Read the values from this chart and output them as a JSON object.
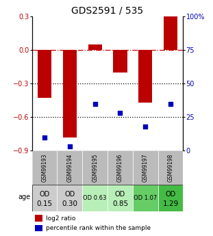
{
  "title": "GDS2591 / 535",
  "samples": [
    "GSM99193",
    "GSM99194",
    "GSM99195",
    "GSM99196",
    "GSM99197",
    "GSM99198"
  ],
  "log2_ratio": [
    -0.43,
    -0.78,
    0.05,
    -0.2,
    -0.47,
    0.3
  ],
  "percentile_rank": [
    10,
    3,
    35,
    28,
    18,
    35
  ],
  "ylim_left": [
    -0.9,
    0.3
  ],
  "ylim_right": [
    0,
    100
  ],
  "yticks_left": [
    -0.9,
    -0.6,
    -0.3,
    0.0,
    0.3
  ],
  "yticks_right": [
    0,
    25,
    50,
    75,
    100
  ],
  "right_tick_labels": [
    "0",
    "25",
    "50",
    "75",
    "100%"
  ],
  "bar_color": "#bb0000",
  "dot_color": "#0000bb",
  "dashed_line_color": "#cc0000",
  "dotted_line_color": "#000000",
  "age_labels_line1": [
    "OD",
    "OD",
    "OD 0.63",
    "OD",
    "OD 1.07",
    "OD"
  ],
  "age_labels_line2": [
    "0.15",
    "0.30",
    "",
    "0.85",
    "",
    "1.29"
  ],
  "age_bg_colors": [
    "#cccccc",
    "#cccccc",
    "#b8eeb8",
    "#b8eeb8",
    "#66cc66",
    "#44bb44"
  ],
  "sample_bg_color": "#bbbbbb",
  "title_fontsize": 10,
  "bar_width": 0.55,
  "hline_75_color": "#cc0000",
  "hline_50_color": "#000000",
  "hline_25_color": "#000000"
}
